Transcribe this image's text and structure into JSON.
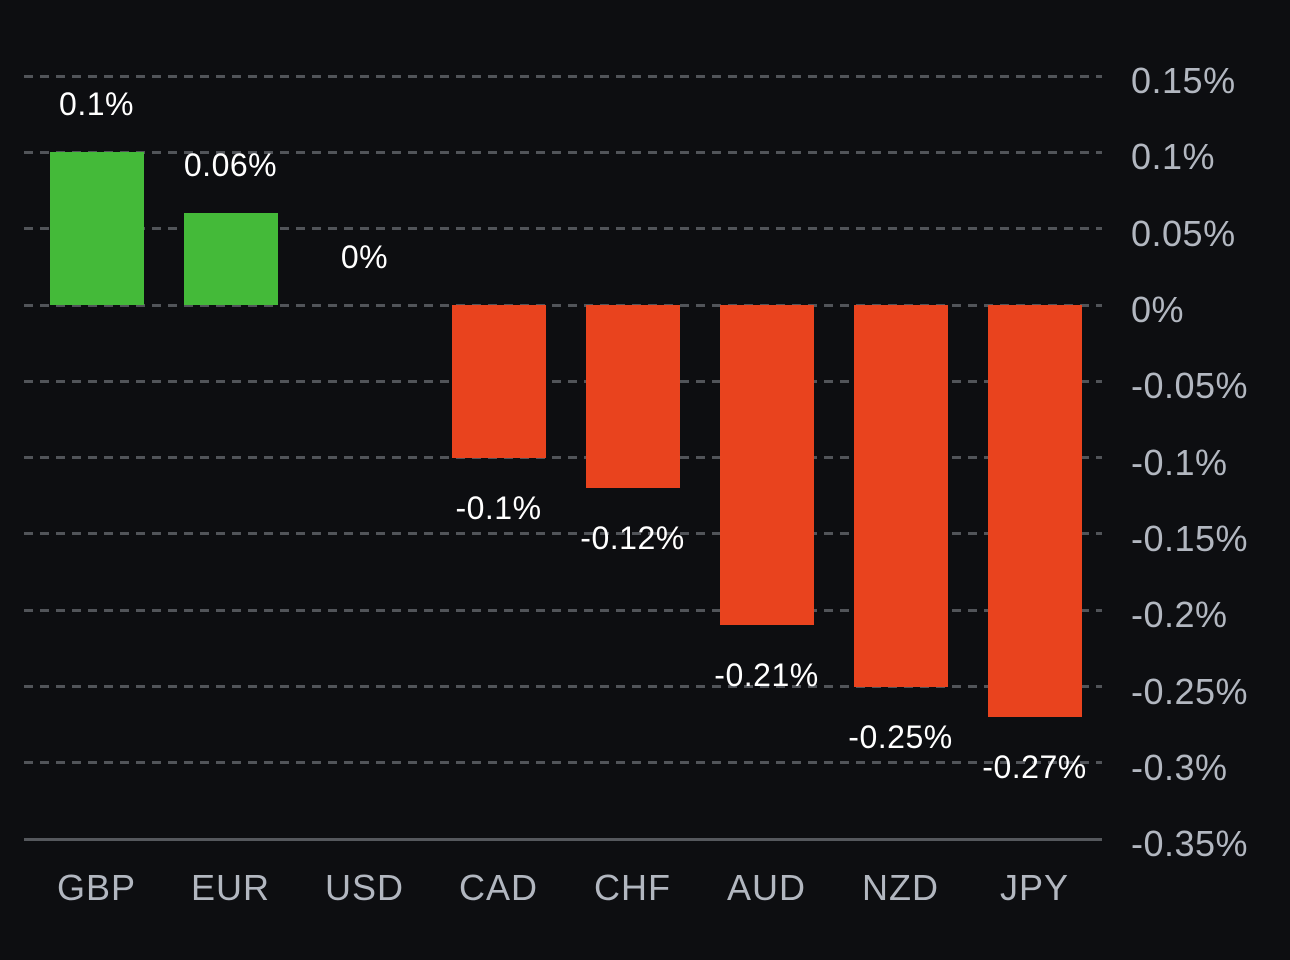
{
  "chart_data": {
    "type": "bar",
    "categories": [
      "GBP",
      "EUR",
      "USD",
      "CAD",
      "CHF",
      "AUD",
      "NZD",
      "JPY"
    ],
    "values": [
      0.1,
      0.06,
      0,
      -0.1,
      -0.12,
      -0.21,
      -0.25,
      -0.27
    ],
    "bar_labels": [
      "0.1%",
      "0.06%",
      "0%",
      "-0.1%",
      "-0.12%",
      "-0.21%",
      "-0.25%",
      "-0.27%"
    ],
    "unit": "%",
    "y_axis": {
      "side": "right",
      "range": [
        -0.35,
        0.15
      ],
      "ticks": [
        0.15,
        0.1,
        0.05,
        0,
        -0.05,
        -0.1,
        -0.15,
        -0.2,
        -0.25,
        -0.3,
        -0.35
      ],
      "tick_labels": [
        "0.15%",
        "0.1%",
        "0.05%",
        "0%",
        "-0.05%",
        "-0.1%",
        "-0.15%",
        "-0.2%",
        "-0.25%",
        "-0.3%",
        "-0.35%"
      ]
    },
    "grid": {
      "horizontal": true,
      "style": "dashed",
      "baseline_value": -0.35
    },
    "legend": "none",
    "colors": {
      "background": "#0d0e11",
      "positive_bar": "#44ba39",
      "negative_bar": "#e9431e",
      "bar_label_text": "#ffffff",
      "axis_text": "#b2b7c0",
      "gridline": "#515459",
      "baseline": "#55585d"
    }
  }
}
